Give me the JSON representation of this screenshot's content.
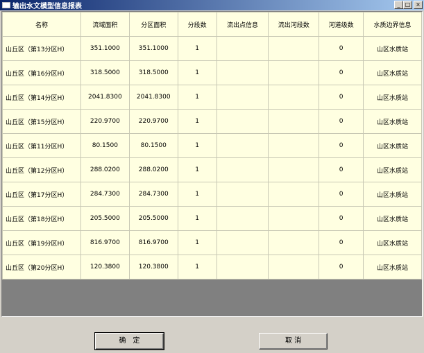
{
  "window": {
    "title": "输出水文模型信息报表",
    "minimize": "_",
    "maximize": "□",
    "close": "×"
  },
  "table": {
    "headers": [
      "名称",
      "流域面积",
      "分区面积",
      "分段数",
      "流出点信息",
      "流出河段数",
      "河道级数",
      "水质边界信息"
    ],
    "rows": [
      [
        "山丘区（第13分区H）",
        "351.1000",
        "351.1000",
        "1",
        "",
        "",
        "0",
        "山区水质站"
      ],
      [
        "山丘区（第16分区H）",
        "318.5000",
        "318.5000",
        "1",
        "",
        "",
        "0",
        "山区水质站"
      ],
      [
        "山丘区（第14分区H）",
        "2041.8300",
        "2041.8300",
        "1",
        "",
        "",
        "0",
        "山区水质站"
      ],
      [
        "山丘区（第15分区H）",
        "220.9700",
        "220.9700",
        "1",
        "",
        "",
        "0",
        "山区水质站"
      ],
      [
        "山丘区（第11分区H）",
        "80.1500",
        "80.1500",
        "1",
        "",
        "",
        "0",
        "山区水质站"
      ],
      [
        "山丘区（第12分区H）",
        "288.0200",
        "288.0200",
        "1",
        "",
        "",
        "0",
        "山区水质站"
      ],
      [
        "山丘区（第17分区H）",
        "284.7300",
        "284.7300",
        "1",
        "",
        "",
        "0",
        "山区水质站"
      ],
      [
        "山丘区（第18分区H）",
        "205.5000",
        "205.5000",
        "1",
        "",
        "",
        "0",
        "山区水质站"
      ],
      [
        "山丘区（第19分区H）",
        "816.9700",
        "816.9700",
        "1",
        "",
        "",
        "0",
        "山区水质站"
      ],
      [
        "山丘区（第20分区H）",
        "120.3800",
        "120.3800",
        "1",
        "",
        "",
        "0",
        "山区水质站"
      ]
    ]
  },
  "buttons": {
    "ok": "确　定",
    "cancel": "取 消"
  }
}
